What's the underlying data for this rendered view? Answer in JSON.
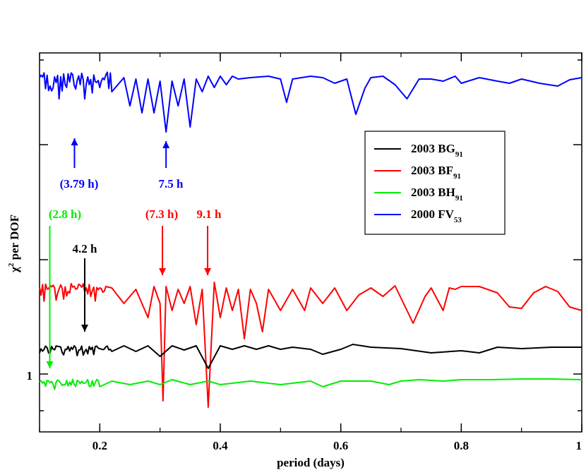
{
  "chart_data": {
    "type": "line",
    "title": "",
    "xlabel": "period (days)",
    "ylabel_chi": "χ",
    "ylabel_sup": "2",
    "ylabel_rest": " per DOF",
    "xlim": [
      0.1,
      1.0
    ],
    "xticks": [
      {
        "value": 0.2,
        "label": "0.2"
      },
      {
        "value": 0.4,
        "label": "0.4"
      },
      {
        "value": 0.6,
        "label": "0.6"
      },
      {
        "value": 0.8,
        "label": "0.8"
      },
      {
        "value": 1.0,
        "label": "1"
      }
    ],
    "ytick_one_label": "1",
    "colors": {
      "black": "#000000",
      "red": "#ff0000",
      "green": "#00ee00",
      "blue": "#0000ff"
    },
    "legend": [
      {
        "name": "2003 BG",
        "sub": "91",
        "color": "#000000"
      },
      {
        "name": "2003 BF",
        "sub": "91",
        "color": "#ff0000"
      },
      {
        "name": "2003 BH",
        "sub": "91",
        "color": "#00ee00"
      },
      {
        "name": "2000 FV",
        "sub": "53",
        "color": "#0000ff"
      }
    ],
    "series": [
      {
        "name": "2000 FV53",
        "color": "#0000ff",
        "baseline": 108,
        "noise_until": 0.22,
        "points": [
          [
            0.1,
            108
          ],
          [
            0.11,
            140
          ],
          [
            0.12,
            112
          ],
          [
            0.13,
            150
          ],
          [
            0.14,
            110
          ],
          [
            0.15,
            135
          ],
          [
            0.16,
            184
          ],
          [
            0.17,
            110
          ],
          [
            0.18,
            150
          ],
          [
            0.19,
            115
          ],
          [
            0.2,
            140
          ],
          [
            0.21,
            112
          ],
          [
            0.22,
            130
          ],
          [
            0.24,
            110
          ],
          [
            0.25,
            150
          ],
          [
            0.26,
            112
          ],
          [
            0.27,
            160
          ],
          [
            0.28,
            112
          ],
          [
            0.29,
            160
          ],
          [
            0.3,
            115
          ],
          [
            0.31,
            187
          ],
          [
            0.32,
            115
          ],
          [
            0.33,
            150
          ],
          [
            0.34,
            112
          ],
          [
            0.35,
            180
          ],
          [
            0.36,
            112
          ],
          [
            0.37,
            130
          ],
          [
            0.38,
            108
          ],
          [
            0.39,
            124
          ],
          [
            0.4,
            108
          ],
          [
            0.41,
            120
          ],
          [
            0.42,
            108
          ],
          [
            0.43,
            112
          ],
          [
            0.45,
            110
          ],
          [
            0.48,
            108
          ],
          [
            0.5,
            112
          ],
          [
            0.51,
            145
          ],
          [
            0.52,
            112
          ],
          [
            0.55,
            108
          ],
          [
            0.57,
            110
          ],
          [
            0.59,
            118
          ],
          [
            0.61,
            112
          ],
          [
            0.625,
            162
          ],
          [
            0.64,
            125
          ],
          [
            0.65,
            110
          ],
          [
            0.67,
            108
          ],
          [
            0.69,
            120
          ],
          [
            0.71,
            140
          ],
          [
            0.73,
            112
          ],
          [
            0.75,
            112
          ],
          [
            0.77,
            115
          ],
          [
            0.79,
            108
          ],
          [
            0.8,
            118
          ],
          [
            0.83,
            110
          ],
          [
            0.86,
            115
          ],
          [
            0.88,
            118
          ],
          [
            0.9,
            112
          ],
          [
            0.93,
            118
          ],
          [
            0.96,
            122
          ],
          [
            0.98,
            113
          ],
          [
            1.0,
            110
          ]
        ]
      },
      {
        "name": "2003 BF91",
        "color": "#ff0000",
        "baseline": 406,
        "noise_until": 0.21,
        "points": [
          [
            0.1,
            406
          ],
          [
            0.12,
            430
          ],
          [
            0.14,
            420
          ],
          [
            0.16,
            433
          ],
          [
            0.18,
            408
          ],
          [
            0.2,
            415
          ],
          [
            0.21,
            406
          ],
          [
            0.22,
            408
          ],
          [
            0.24,
            430
          ],
          [
            0.26,
            410
          ],
          [
            0.28,
            450
          ],
          [
            0.29,
            406
          ],
          [
            0.3,
            430
          ],
          [
            0.305,
            568
          ],
          [
            0.31,
            406
          ],
          [
            0.32,
            440
          ],
          [
            0.33,
            410
          ],
          [
            0.34,
            430
          ],
          [
            0.35,
            406
          ],
          [
            0.36,
            460
          ],
          [
            0.37,
            410
          ],
          [
            0.38,
            577
          ],
          [
            0.39,
            400
          ],
          [
            0.4,
            450
          ],
          [
            0.41,
            408
          ],
          [
            0.42,
            440
          ],
          [
            0.43,
            410
          ],
          [
            0.44,
            480
          ],
          [
            0.45,
            410
          ],
          [
            0.46,
            430
          ],
          [
            0.47,
            470
          ],
          [
            0.48,
            410
          ],
          [
            0.5,
            440
          ],
          [
            0.52,
            410
          ],
          [
            0.54,
            440
          ],
          [
            0.55,
            408
          ],
          [
            0.57,
            430
          ],
          [
            0.59,
            408
          ],
          [
            0.61,
            440
          ],
          [
            0.63,
            418
          ],
          [
            0.65,
            408
          ],
          [
            0.67,
            420
          ],
          [
            0.69,
            405
          ],
          [
            0.71,
            440
          ],
          [
            0.72,
            458
          ],
          [
            0.74,
            420
          ],
          [
            0.75,
            408
          ],
          [
            0.77,
            440
          ],
          [
            0.78,
            408
          ],
          [
            0.79,
            410
          ],
          [
            0.8,
            406
          ],
          [
            0.83,
            406
          ],
          [
            0.86,
            415
          ],
          [
            0.88,
            435
          ],
          [
            0.9,
            437
          ],
          [
            0.92,
            415
          ],
          [
            0.94,
            406
          ],
          [
            0.96,
            413
          ],
          [
            0.98,
            435
          ],
          [
            1.0,
            440
          ]
        ]
      },
      {
        "name": "2003 BG91",
        "color": "#000000",
        "baseline": 492,
        "noise_until": 0.22,
        "points": [
          [
            0.1,
            492
          ],
          [
            0.12,
            500
          ],
          [
            0.14,
            488
          ],
          [
            0.16,
            500
          ],
          [
            0.18,
            525
          ],
          [
            0.2,
            488
          ],
          [
            0.22,
            498
          ],
          [
            0.24,
            490
          ],
          [
            0.26,
            498
          ],
          [
            0.28,
            490
          ],
          [
            0.3,
            505
          ],
          [
            0.32,
            490
          ],
          [
            0.34,
            496
          ],
          [
            0.36,
            490
          ],
          [
            0.38,
            522
          ],
          [
            0.4,
            490
          ],
          [
            0.42,
            495
          ],
          [
            0.44,
            490
          ],
          [
            0.46,
            495
          ],
          [
            0.48,
            490
          ],
          [
            0.5,
            495
          ],
          [
            0.52,
            492
          ],
          [
            0.55,
            495
          ],
          [
            0.57,
            502
          ],
          [
            0.6,
            495
          ],
          [
            0.62,
            488
          ],
          [
            0.65,
            492
          ],
          [
            0.7,
            494
          ],
          [
            0.75,
            500
          ],
          [
            0.8,
            497
          ],
          [
            0.83,
            500
          ],
          [
            0.86,
            492
          ],
          [
            0.9,
            494
          ],
          [
            0.95,
            492
          ],
          [
            1.0,
            492
          ]
        ]
      },
      {
        "name": "2003 BH91",
        "color": "#00ee00",
        "baseline": 540,
        "noise_until": 0.2,
        "points": [
          [
            0.1,
            540
          ],
          [
            0.12,
            545
          ],
          [
            0.14,
            540
          ],
          [
            0.16,
            555
          ],
          [
            0.18,
            540
          ],
          [
            0.2,
            548
          ],
          [
            0.22,
            540
          ],
          [
            0.25,
            545
          ],
          [
            0.28,
            540
          ],
          [
            0.3,
            545
          ],
          [
            0.32,
            538
          ],
          [
            0.35,
            545
          ],
          [
            0.38,
            540
          ],
          [
            0.4,
            545
          ],
          [
            0.45,
            540
          ],
          [
            0.5,
            545
          ],
          [
            0.55,
            540
          ],
          [
            0.57,
            548
          ],
          [
            0.6,
            540
          ],
          [
            0.62,
            540
          ],
          [
            0.65,
            540
          ],
          [
            0.68,
            545
          ],
          [
            0.7,
            540
          ],
          [
            0.73,
            538
          ],
          [
            0.77,
            540
          ],
          [
            0.8,
            538
          ],
          [
            0.85,
            538
          ],
          [
            0.9,
            537
          ],
          [
            0.95,
            537
          ],
          [
            1.0,
            538
          ]
        ]
      }
    ],
    "annotations": [
      {
        "text": "(3.79 h)",
        "color": "#0000ff",
        "arrow_x": 0.158,
        "arrow_dir": "up"
      },
      {
        "text": "7.5 h",
        "color": "#0000ff",
        "arrow_x": 0.31,
        "arrow_dir": "up"
      },
      {
        "text": "(2.8 h)",
        "color": "#00ee00",
        "arrow_x": 0.117,
        "arrow_dir": "down"
      },
      {
        "text": "4.2 h",
        "color": "#000000",
        "arrow_x": 0.175,
        "arrow_dir": "down"
      },
      {
        "text": "(7.3 h)",
        "color": "#ff0000",
        "arrow_x": 0.304,
        "arrow_dir": "down"
      },
      {
        "text": "9.1 h",
        "color": "#ff0000",
        "arrow_x": 0.379,
        "arrow_dir": "down"
      }
    ]
  }
}
